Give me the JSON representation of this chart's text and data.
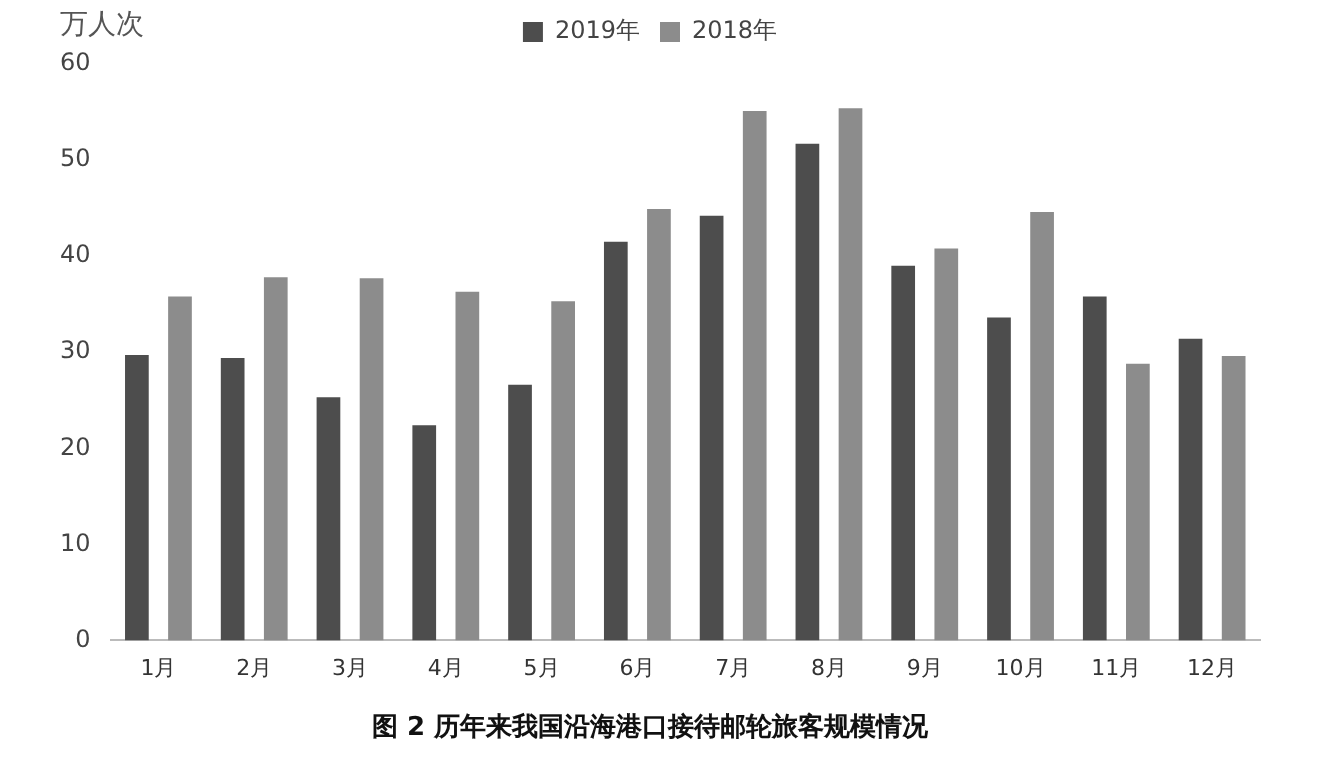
{
  "chart_data": {
    "type": "bar",
    "title": "图 2 历年来我国沿海港口接待邮轮旅客规模情况",
    "ylabel": "万人次",
    "categories": [
      "1月",
      "2月",
      "3月",
      "4月",
      "5月",
      "6月",
      "7月",
      "8月",
      "9月",
      "10月",
      "11月",
      "12月"
    ],
    "series": [
      {
        "name": "2019年",
        "color": "#4d4d4d",
        "values": [
          29.7,
          29.4,
          25.3,
          22.4,
          26.6,
          41.5,
          44.2,
          51.7,
          39.0,
          33.6,
          35.8,
          31.4
        ]
      },
      {
        "name": "2018年",
        "color": "#8c8c8c",
        "values": [
          35.8,
          37.8,
          37.7,
          36.3,
          35.3,
          44.9,
          55.1,
          55.4,
          40.8,
          44.6,
          28.8,
          29.6
        ]
      }
    ],
    "ylim": [
      0,
      60
    ],
    "yticks": [
      0,
      10,
      20,
      30,
      40,
      50,
      60
    ],
    "grid": false,
    "legend": "top"
  }
}
